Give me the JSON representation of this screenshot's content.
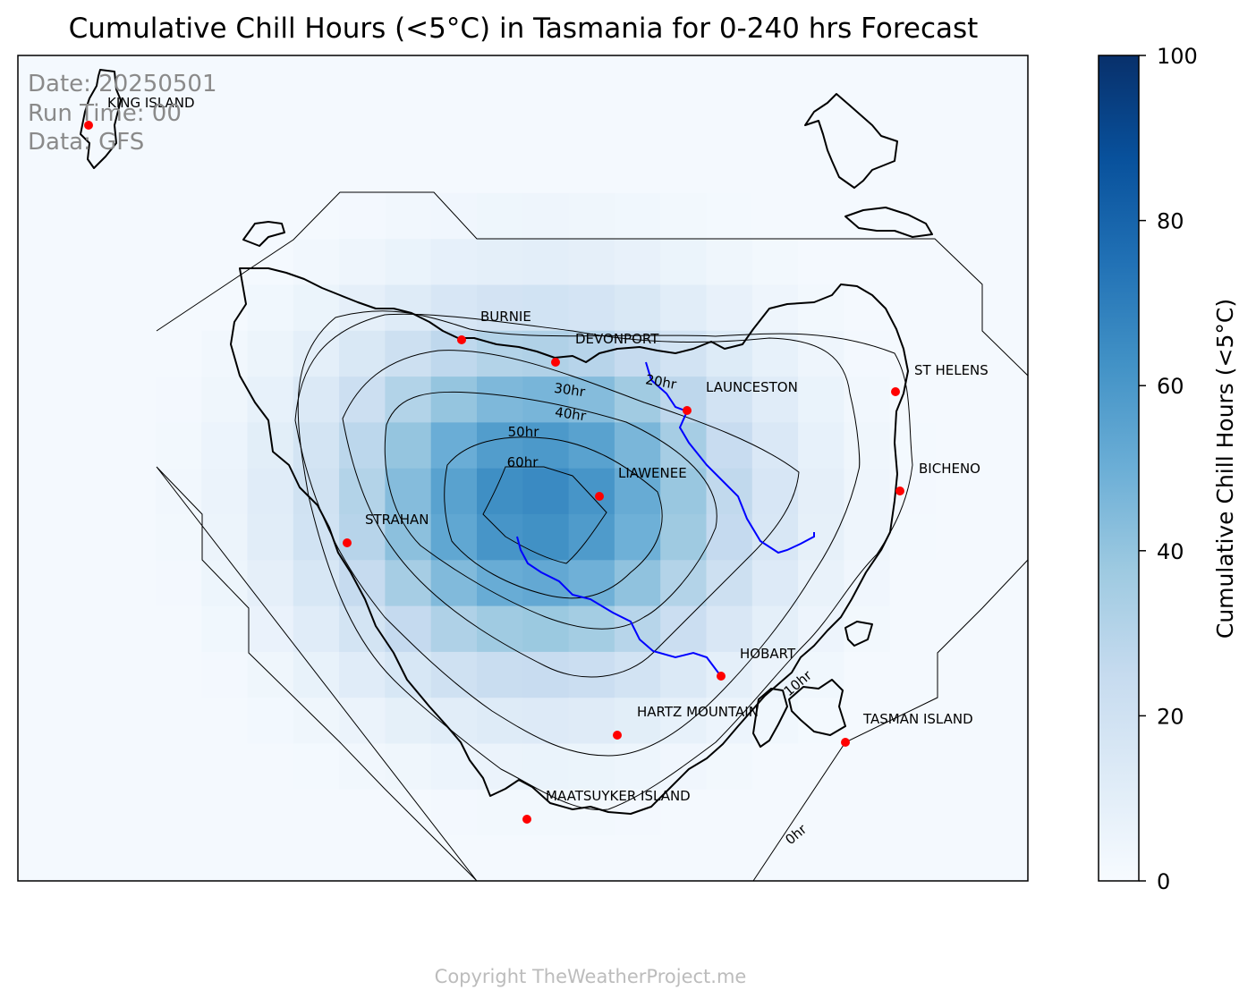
{
  "title": "Cumulative Chill Hours (<5°C) in Tasmania for 0-240 hrs Forecast",
  "info": {
    "date": "Date: 20250501",
    "run_time": "Run Time: 00",
    "data_source": "Data: GFS"
  },
  "copyright": "Copyright TheWeatherProject.me",
  "colorbar": {
    "label": "Cumulative Chill Hours (<5°C)",
    "min": 0,
    "max": 100,
    "ticks": [
      "0",
      "20",
      "40",
      "60",
      "80",
      "100"
    ],
    "colormap": "Blues",
    "color_low": "#f7fbff",
    "color_high": "#08306b"
  },
  "chart_data": {
    "type": "heatmap",
    "title": "Cumulative Chill Hours (<5°C) in Tasmania for 0-240 hrs Forecast",
    "value_range": [
      0,
      100
    ],
    "contour_levels": [
      "0hr",
      "10hr",
      "20hr",
      "30hr",
      "40hr",
      "50hr",
      "60hr"
    ],
    "peak_location": "LIAWENEE",
    "approx_peak_value": 66,
    "locations": [
      {
        "name": "KING ISLAND"
      },
      {
        "name": "BURNIE"
      },
      {
        "name": "DEVONPORT"
      },
      {
        "name": "LAUNCESTON"
      },
      {
        "name": "ST HELENS"
      },
      {
        "name": "BICHENO"
      },
      {
        "name": "LIAWENEE"
      },
      {
        "name": "STRAHAN"
      },
      {
        "name": "HOBART"
      },
      {
        "name": "HARTZ MOUNTAIN"
      },
      {
        "name": "TASMAN ISLAND"
      },
      {
        "name": "MAATSUYKER ISLAND"
      }
    ],
    "marker_color": "#ff0000",
    "river_color": "#0000ff"
  }
}
